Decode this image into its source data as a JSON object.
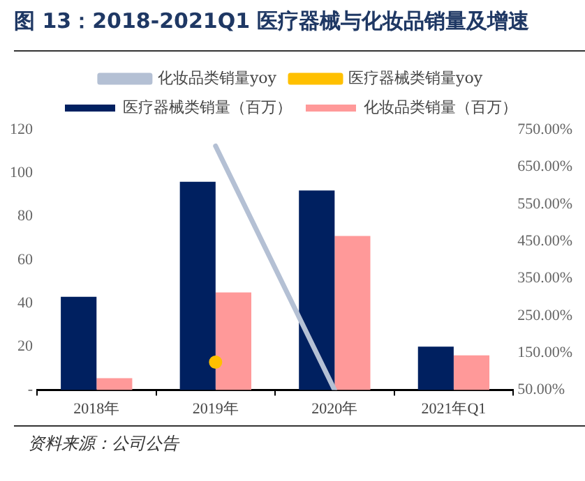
{
  "chart_data": {
    "type": "bar",
    "title": "图 13：2018-2021Q1 医疗器械与化妆品销量及增速",
    "categories": [
      "2018年",
      "2019年",
      "2020年",
      "2021年Q1"
    ],
    "series": [
      {
        "name": "医疗器械类销量（百万）",
        "color": "#002060",
        "values": [
          43,
          96,
          92,
          20
        ]
      },
      {
        "name": "化妆品类销量（百万）",
        "color": "#ff9999",
        "values": [
          5.5,
          45,
          71,
          16
        ]
      },
      {
        "name": "化妆品类销量yoy",
        "type": "line",
        "axis": "y2",
        "color": "#b4c0d4",
        "values": [
          null,
          706,
          50,
          null
        ]
      },
      {
        "name": "医疗器械类销量yoy",
        "type": "line",
        "axis": "y2",
        "color": "#ffc000",
        "marker": "circle",
        "values": [
          null,
          125,
          null,
          null
        ]
      }
    ],
    "ylim": [
      0,
      120
    ],
    "yticks": [
      {
        "value": 0,
        "label": "-"
      },
      20,
      40,
      60,
      80,
      100,
      120
    ],
    "y2lim": [
      50,
      750
    ],
    "y2ticks": [
      {
        "value": 50,
        "label": "50.00%"
      },
      {
        "value": 150,
        "label": "150.00%"
      },
      {
        "value": 250,
        "label": "250.00%"
      },
      {
        "value": 350,
        "label": "350.00%"
      },
      {
        "value": 450,
        "label": "450.00%"
      },
      {
        "value": 550,
        "label": "550.00%"
      },
      {
        "value": 650,
        "label": "650.00%"
      },
      {
        "value": 750,
        "label": "750.00%"
      }
    ],
    "grid": false,
    "legend": "top",
    "marker": "none",
    "annotations": [
      "资料来源：公司公告"
    ]
  }
}
